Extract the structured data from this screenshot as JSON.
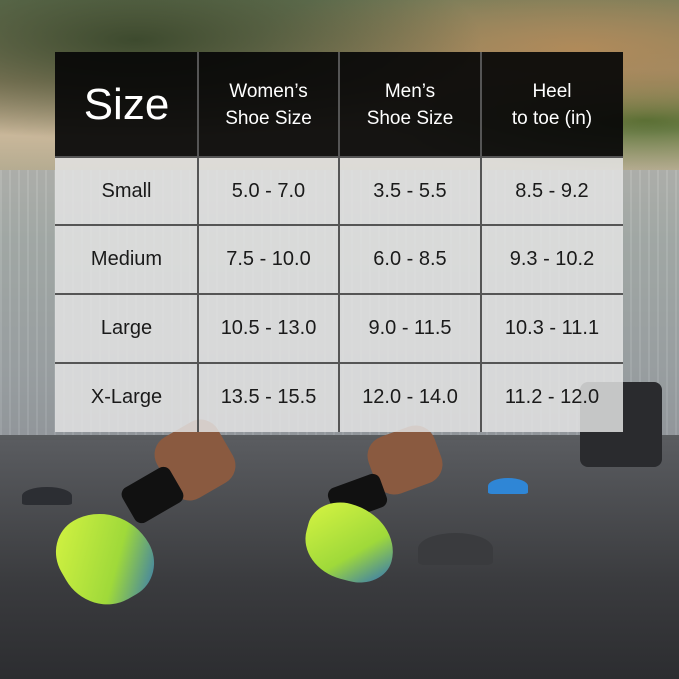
{
  "table": {
    "headers": [
      "Size",
      "Women’s\nShoe Size",
      "Men’s\nShoe Size",
      "Heel\nto toe (in)"
    ],
    "rows": [
      [
        "Small",
        "5.0 - 7.0",
        "3.5 - 5.5",
        "8.5 - 9.2"
      ],
      [
        "Medium",
        "7.5 - 10.0",
        "6.0 - 8.5",
        "9.3 - 10.2"
      ],
      [
        "Large",
        "10.5 - 13.0",
        "9.0 - 11.5",
        "10.3 - 11.1"
      ],
      [
        "X-Large",
        "13.5 - 15.5",
        "12.0 - 14.0",
        "11.2 - 12.0"
      ]
    ]
  },
  "colors": {
    "header_bg": "#080808",
    "body_bg": "#e4e4e4",
    "text_dark": "#1a1a1a",
    "shoe_accent": "#c8f03c"
  }
}
